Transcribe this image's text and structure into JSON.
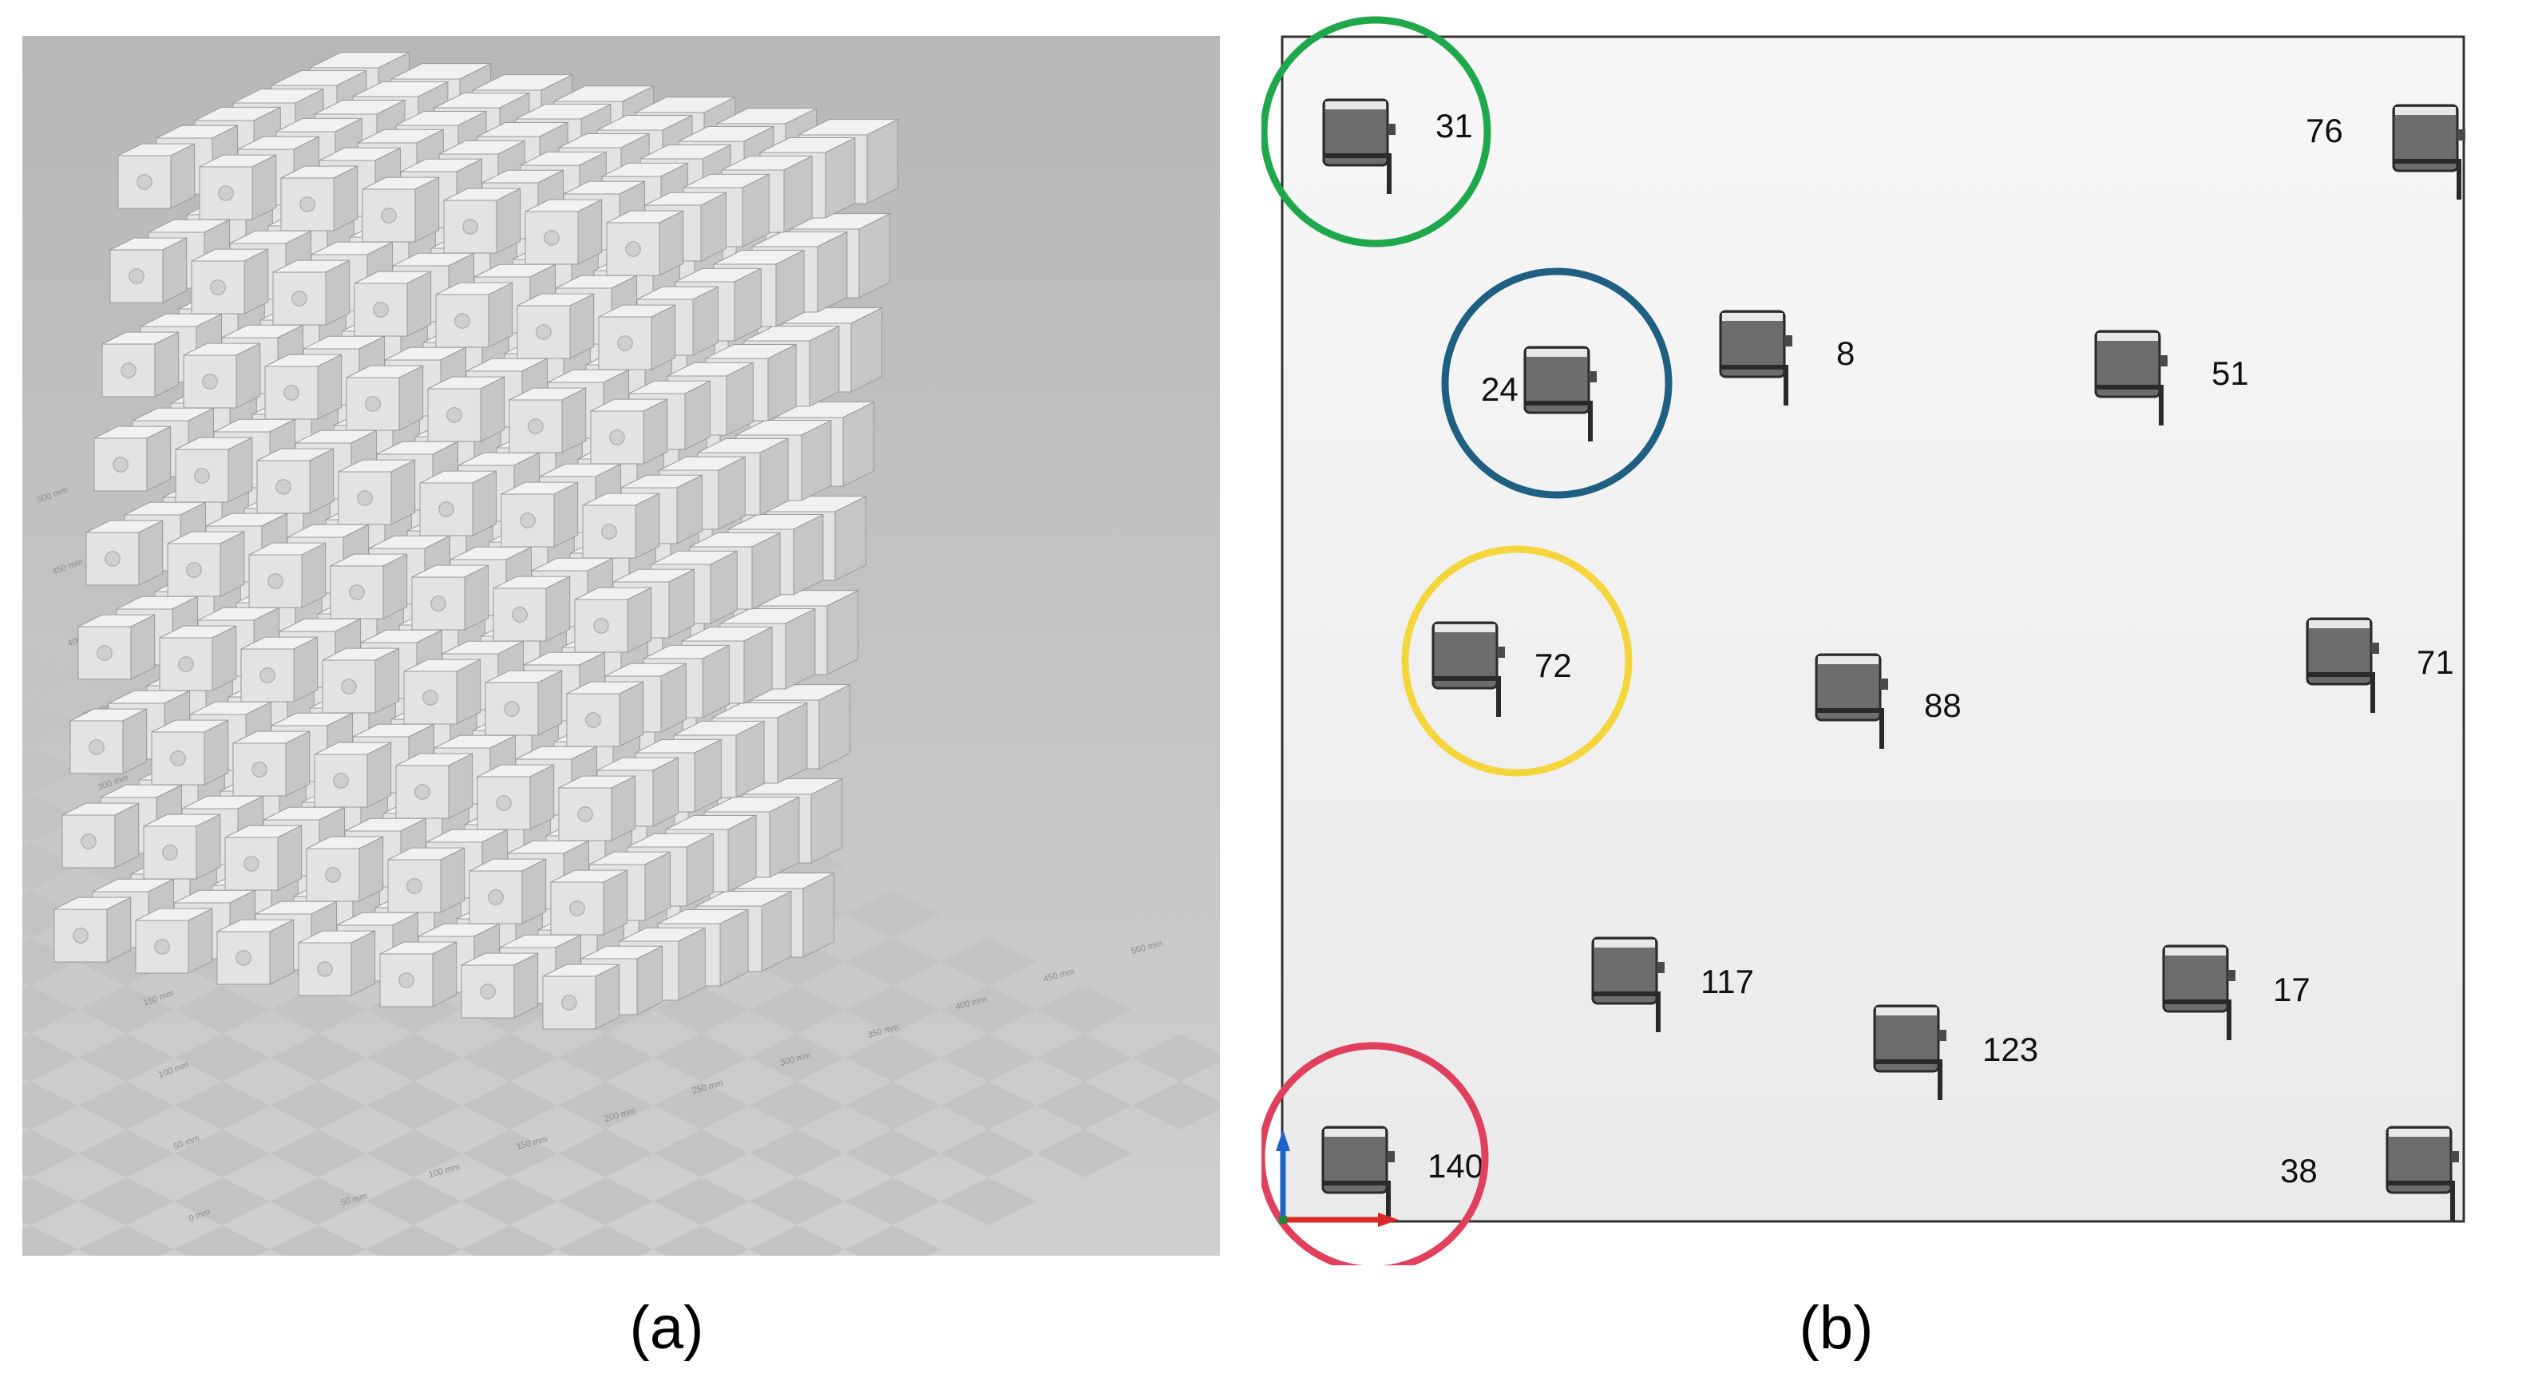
{
  "panel_a": {
    "caption": "(a)",
    "axis_labels": {
      "left": [
        "0 mm",
        "50 mm",
        "100 mm",
        "150 mm",
        "200 mm",
        "250 mm",
        "300 mm",
        "350 mm",
        "400 mm",
        "450 mm",
        "500 mm"
      ],
      "right": [
        "50 mm",
        "100 mm",
        "150 mm",
        "200 mm",
        "250 mm",
        "300 mm",
        "350 mm",
        "400 mm",
        "450 mm",
        "500 mm"
      ]
    }
  },
  "panel_b": {
    "caption": "(b)",
    "modules": [
      {
        "label": "31",
        "highlight": "#1fa84b"
      },
      {
        "label": "76"
      },
      {
        "label": "24",
        "highlight": "#1f5f82"
      },
      {
        "label": "8"
      },
      {
        "label": "51"
      },
      {
        "label": "72",
        "highlight": "#f4d63c"
      },
      {
        "label": "88"
      },
      {
        "label": "71"
      },
      {
        "label": "117"
      },
      {
        "label": "17"
      },
      {
        "label": "123"
      },
      {
        "label": "140",
        "highlight": "#e0405c"
      },
      {
        "label": "38"
      }
    ]
  }
}
